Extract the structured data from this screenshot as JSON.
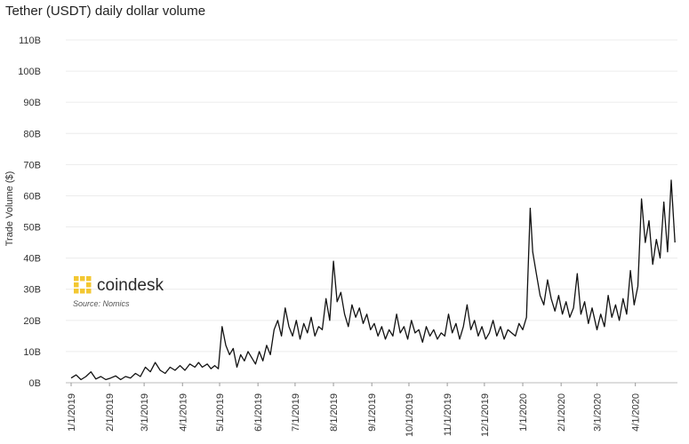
{
  "title": "Tether (USDT) daily dollar volume",
  "watermark": {
    "brand": "coindesk",
    "source": "Source: Nomics",
    "color": "#f3c731",
    "icon": "coindesk-logo-icon"
  },
  "chart_data": {
    "type": "line",
    "title": "Tether (USDT) daily dollar volume",
    "xlabel": "",
    "ylabel": "Trade Volume ($)",
    "x_range": [
      "2019-01-01",
      "2020-05-05"
    ],
    "ylim": [
      0,
      110
    ],
    "y_unit": "billions USD",
    "y_ticks": [
      0,
      10,
      20,
      30,
      40,
      50,
      60,
      70,
      80,
      90,
      100,
      110
    ],
    "y_tick_labels": [
      "0B",
      "10B",
      "20B",
      "30B",
      "40B",
      "50B",
      "60B",
      "70B",
      "80B",
      "90B",
      "100B",
      "110B"
    ],
    "x_ticks": [
      "2019-01-01",
      "2019-02-01",
      "2019-03-01",
      "2019-04-01",
      "2019-05-01",
      "2019-06-01",
      "2019-07-01",
      "2019-08-01",
      "2019-09-01",
      "2019-10-01",
      "2019-11-01",
      "2019-12-01",
      "2020-01-01",
      "2020-02-01",
      "2020-03-01",
      "2020-04-01"
    ],
    "x_tick_labels": [
      "1/1/2019",
      "2/1/2019",
      "3/1/2019",
      "4/1/2019",
      "5/1/2019",
      "6/1/2019",
      "7/1/2019",
      "8/1/2019",
      "9/1/2019",
      "10/1/2019",
      "11/1/2019",
      "12/1/2019",
      "1/1/2020",
      "2/1/2020",
      "3/1/2020",
      "4/1/2020"
    ],
    "grid": true,
    "line_color": "#111111",
    "series": [
      {
        "points": [
          [
            "2019-01-01",
            1.5
          ],
          [
            "2019-01-05",
            2.5
          ],
          [
            "2019-01-09",
            1.0
          ],
          [
            "2019-01-13",
            2.0
          ],
          [
            "2019-01-17",
            3.5
          ],
          [
            "2019-01-21",
            1.2
          ],
          [
            "2019-01-25",
            2.0
          ],
          [
            "2019-01-29",
            1.0
          ],
          [
            "2019-02-02",
            1.5
          ],
          [
            "2019-02-06",
            2.2
          ],
          [
            "2019-02-10",
            1.0
          ],
          [
            "2019-02-14",
            2.0
          ],
          [
            "2019-02-18",
            1.5
          ],
          [
            "2019-02-22",
            3.0
          ],
          [
            "2019-02-26",
            2.0
          ],
          [
            "2019-03-02",
            5.0
          ],
          [
            "2019-03-06",
            3.5
          ],
          [
            "2019-03-10",
            6.5
          ],
          [
            "2019-03-14",
            4.0
          ],
          [
            "2019-03-18",
            3.0
          ],
          [
            "2019-03-22",
            5.0
          ],
          [
            "2019-03-26",
            4.0
          ],
          [
            "2019-03-30",
            5.5
          ],
          [
            "2019-04-03",
            4.0
          ],
          [
            "2019-04-07",
            6.0
          ],
          [
            "2019-04-11",
            5.0
          ],
          [
            "2019-04-14",
            6.5
          ],
          [
            "2019-04-17",
            5.0
          ],
          [
            "2019-04-21",
            6.0
          ],
          [
            "2019-04-24",
            4.5
          ],
          [
            "2019-04-27",
            5.5
          ],
          [
            "2019-04-30",
            4.5
          ],
          [
            "2019-05-03",
            18.0
          ],
          [
            "2019-05-06",
            12.0
          ],
          [
            "2019-05-09",
            9.0
          ],
          [
            "2019-05-12",
            11.0
          ],
          [
            "2019-05-15",
            5.0
          ],
          [
            "2019-05-18",
            9.0
          ],
          [
            "2019-05-21",
            7.0
          ],
          [
            "2019-05-24",
            10.0
          ],
          [
            "2019-05-27",
            8.0
          ],
          [
            "2019-05-30",
            6.0
          ],
          [
            "2019-06-02",
            10.0
          ],
          [
            "2019-06-05",
            7.0
          ],
          [
            "2019-06-08",
            12.0
          ],
          [
            "2019-06-11",
            9.0
          ],
          [
            "2019-06-14",
            17.0
          ],
          [
            "2019-06-17",
            20.0
          ],
          [
            "2019-06-20",
            15.0
          ],
          [
            "2019-06-23",
            24.0
          ],
          [
            "2019-06-26",
            18.0
          ],
          [
            "2019-06-29",
            15.0
          ],
          [
            "2019-07-02",
            20.0
          ],
          [
            "2019-07-05",
            14.0
          ],
          [
            "2019-07-08",
            19.0
          ],
          [
            "2019-07-11",
            16.0
          ],
          [
            "2019-07-14",
            21.0
          ],
          [
            "2019-07-17",
            15.0
          ],
          [
            "2019-07-20",
            18.0
          ],
          [
            "2019-07-23",
            17.0
          ],
          [
            "2019-07-26",
            27.0
          ],
          [
            "2019-07-29",
            20.0
          ],
          [
            "2019-08-01",
            39.0
          ],
          [
            "2019-08-04",
            26.0
          ],
          [
            "2019-08-07",
            29.0
          ],
          [
            "2019-08-10",
            22.0
          ],
          [
            "2019-08-13",
            18.0
          ],
          [
            "2019-08-16",
            25.0
          ],
          [
            "2019-08-19",
            21.0
          ],
          [
            "2019-08-22",
            24.0
          ],
          [
            "2019-08-25",
            19.0
          ],
          [
            "2019-08-28",
            22.0
          ],
          [
            "2019-08-31",
            17.0
          ],
          [
            "2019-09-03",
            19.0
          ],
          [
            "2019-09-06",
            15.0
          ],
          [
            "2019-09-09",
            18.0
          ],
          [
            "2019-09-12",
            14.0
          ],
          [
            "2019-09-15",
            17.0
          ],
          [
            "2019-09-18",
            15.0
          ],
          [
            "2019-09-21",
            22.0
          ],
          [
            "2019-09-24",
            16.0
          ],
          [
            "2019-09-27",
            18.0
          ],
          [
            "2019-09-30",
            14.0
          ],
          [
            "2019-10-03",
            20.0
          ],
          [
            "2019-10-06",
            16.0
          ],
          [
            "2019-10-09",
            17.0
          ],
          [
            "2019-10-12",
            13.0
          ],
          [
            "2019-10-15",
            18.0
          ],
          [
            "2019-10-18",
            15.0
          ],
          [
            "2019-10-21",
            17.0
          ],
          [
            "2019-10-24",
            14.0
          ],
          [
            "2019-10-27",
            16.0
          ],
          [
            "2019-10-30",
            15.0
          ],
          [
            "2019-11-02",
            22.0
          ],
          [
            "2019-11-05",
            16.0
          ],
          [
            "2019-11-08",
            19.0
          ],
          [
            "2019-11-11",
            14.0
          ],
          [
            "2019-11-14",
            18.0
          ],
          [
            "2019-11-17",
            25.0
          ],
          [
            "2019-11-20",
            17.0
          ],
          [
            "2019-11-23",
            20.0
          ],
          [
            "2019-11-26",
            15.0
          ],
          [
            "2019-11-29",
            18.0
          ],
          [
            "2019-12-02",
            14.0
          ],
          [
            "2019-12-05",
            16.0
          ],
          [
            "2019-12-08",
            20.0
          ],
          [
            "2019-12-11",
            15.0
          ],
          [
            "2019-12-14",
            18.0
          ],
          [
            "2019-12-17",
            14.0
          ],
          [
            "2019-12-20",
            17.0
          ],
          [
            "2019-12-23",
            16.0
          ],
          [
            "2019-12-26",
            15.0
          ],
          [
            "2019-12-29",
            19.0
          ],
          [
            "2020-01-01",
            17.0
          ],
          [
            "2020-01-04",
            21.0
          ],
          [
            "2020-01-07",
            56.0
          ],
          [
            "2020-01-09",
            42.0
          ],
          [
            "2020-01-12",
            35.0
          ],
          [
            "2020-01-15",
            28.0
          ],
          [
            "2020-01-18",
            25.0
          ],
          [
            "2020-01-21",
            33.0
          ],
          [
            "2020-01-24",
            27.0
          ],
          [
            "2020-01-27",
            23.0
          ],
          [
            "2020-01-30",
            28.0
          ],
          [
            "2020-02-02",
            22.0
          ],
          [
            "2020-02-05",
            26.0
          ],
          [
            "2020-02-08",
            21.0
          ],
          [
            "2020-02-11",
            24.0
          ],
          [
            "2020-02-14",
            35.0
          ],
          [
            "2020-02-17",
            22.0
          ],
          [
            "2020-02-20",
            26.0
          ],
          [
            "2020-02-23",
            19.0
          ],
          [
            "2020-02-26",
            24.0
          ],
          [
            "2020-03-01",
            17.0
          ],
          [
            "2020-03-04",
            22.0
          ],
          [
            "2020-03-07",
            18.0
          ],
          [
            "2020-03-10",
            28.0
          ],
          [
            "2020-03-13",
            21.0
          ],
          [
            "2020-03-16",
            25.0
          ],
          [
            "2020-03-19",
            20.0
          ],
          [
            "2020-03-22",
            27.0
          ],
          [
            "2020-03-25",
            22.0
          ],
          [
            "2020-03-28",
            36.0
          ],
          [
            "2020-03-31",
            25.0
          ],
          [
            "2020-04-03",
            31.0
          ],
          [
            "2020-04-06",
            59.0
          ],
          [
            "2020-04-09",
            45.0
          ],
          [
            "2020-04-12",
            52.0
          ],
          [
            "2020-04-15",
            38.0
          ],
          [
            "2020-04-18",
            46.0
          ],
          [
            "2020-04-21",
            40.0
          ],
          [
            "2020-04-24",
            58.0
          ],
          [
            "2020-04-27",
            42.0
          ],
          [
            "2020-04-30",
            65.0
          ],
          [
            "2020-05-03",
            45.0
          ]
        ]
      }
    ]
  }
}
